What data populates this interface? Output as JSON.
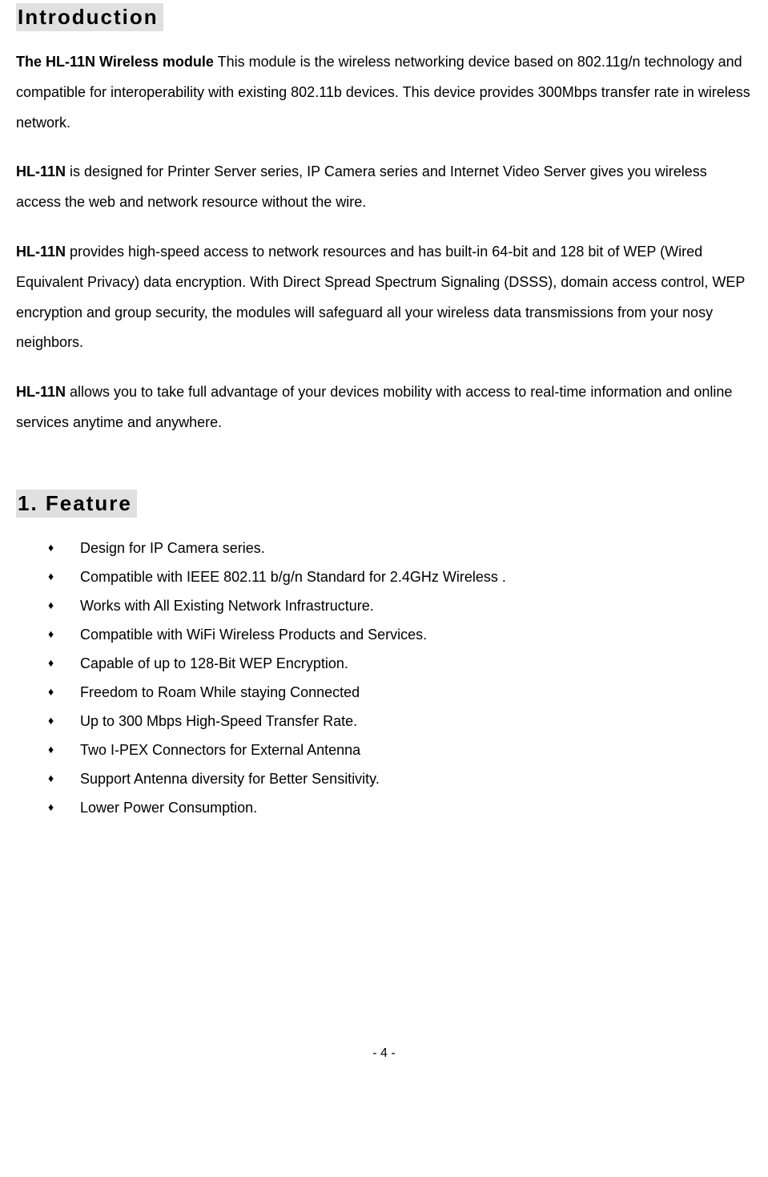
{
  "document": {
    "intro_heading": "Introduction",
    "para1_bold": "The HL-11N Wireless module",
    "para1_rest": " This module is the wireless networking device based on 802.11g/n technology and compatible for interoperability with existing 802.11b devices. This device provides 300Mbps transfer rate in wireless network.",
    "para2_bold": "HL-11N",
    "para2_rest": " is designed for Printer Server series, IP Camera series and Internet Video Server gives you wireless access the web and network resource without the wire.",
    "para3_bold": "HL-11N",
    "para3_rest": " provides high-speed access to network resources and has built-in 64-bit and 128 bit of WEP (Wired Equivalent Privacy) data encryption. With Direct Spread Spectrum Signaling (DSSS), domain access control, WEP encryption and group security, the modules will safeguard all your wireless data transmissions from your nosy neighbors.",
    "para4_bold": "HL-11N",
    "para4_rest": " allows you to take full advantage of your devices mobility with access to real-time information and online services anytime and anywhere.",
    "feature_heading": "1. Feature",
    "features": [
      "Design for IP Camera series.",
      "Compatible with IEEE 802.11 b/g/n Standard for 2.4GHz Wireless .",
      "Works with All Existing Network Infrastructure.",
      "Compatible with WiFi Wireless Products and Services.",
      "Capable of up to 128-Bit WEP Encryption.",
      "Freedom to Roam While staying Connected",
      "Up to 300 Mbps High-Speed Transfer Rate.",
      "Two I-PEX Connectors for External Antenna",
      "Support Antenna diversity for Better Sensitivity.",
      "Lower Power Consumption."
    ],
    "page_number": "- 4 -"
  },
  "colors": {
    "heading_bg": "#e0e0e0",
    "text_color": "#000000",
    "page_bg": "#ffffff"
  },
  "typography": {
    "heading_fontsize": 26,
    "body_fontsize": 18,
    "body_lineheight": 2.1,
    "font_family": "Arial"
  }
}
